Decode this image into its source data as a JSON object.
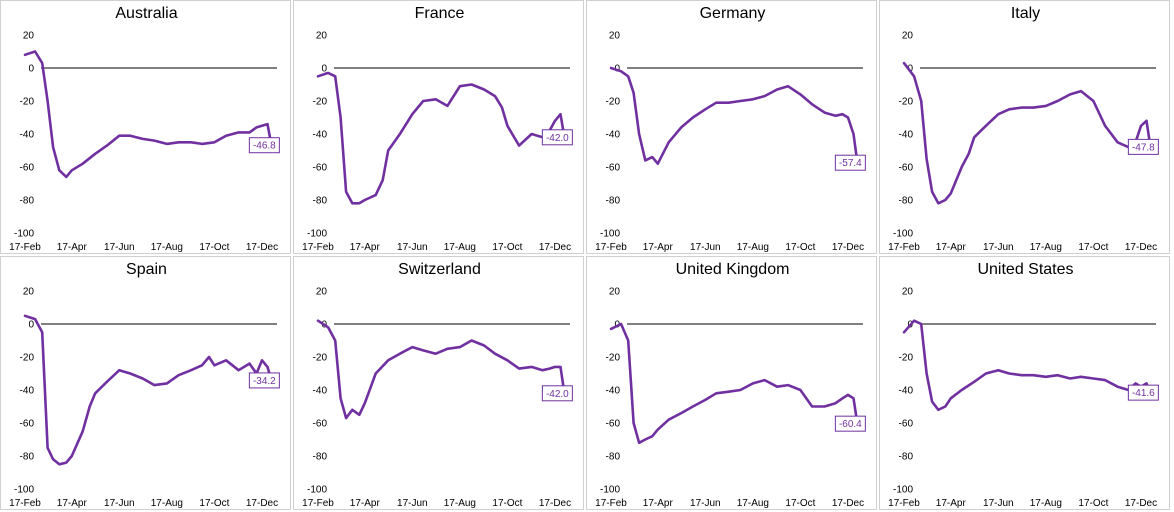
{
  "colors": {
    "series": "#7030A0",
    "zero_line": "#000000",
    "border": "#d0d0d0"
  },
  "chart_data": [
    {
      "type": "line",
      "title": "Australia",
      "x": [
        "17-Feb",
        "1-Mar",
        "10-Mar",
        "17-Mar",
        "24-Mar",
        "1-Apr",
        "10-Apr",
        "17-Apr",
        "1-May",
        "17-May",
        "1-Jun",
        "17-Jun",
        "1-Jul",
        "17-Jul",
        "1-Aug",
        "17-Aug",
        "1-Sep",
        "17-Sep",
        "1-Oct",
        "17-Oct",
        "1-Nov",
        "17-Nov",
        "1-Dec",
        "10-Dec",
        "17-Dec",
        "24-Dec",
        "29-Dec"
      ],
      "y": [
        8,
        10,
        3,
        -20,
        -48,
        -62,
        -66,
        -62,
        -58,
        -52,
        -47,
        -41,
        -41,
        -43,
        -44,
        -46,
        -45,
        -45,
        -46,
        -45,
        -41,
        -39,
        -39,
        -36,
        -35,
        -34,
        -46.8
      ],
      "end_label": "-46.8",
      "xticks": [
        "17-Feb",
        "17-Apr",
        "17-Jun",
        "17-Aug",
        "17-Oct",
        "17-Dec"
      ],
      "yticks": [
        20,
        0,
        -20,
        -40,
        -60,
        -80,
        -100
      ],
      "ylim": [
        -100,
        20
      ],
      "zero_line": true
    },
    {
      "type": "line",
      "title": "France",
      "x": [
        "17-Feb",
        "1-Mar",
        "10-Mar",
        "17-Mar",
        "24-Mar",
        "1-Apr",
        "10-Apr",
        "17-Apr",
        "1-May",
        "10-May",
        "17-May",
        "1-Jun",
        "17-Jun",
        "1-Jul",
        "17-Jul",
        "1-Aug",
        "17-Aug",
        "1-Sep",
        "17-Sep",
        "1-Oct",
        "10-Oct",
        "17-Oct",
        "1-Nov",
        "17-Nov",
        "1-Dec",
        "10-Dec",
        "17-Dec",
        "24-Dec",
        "29-Dec"
      ],
      "y": [
        -5,
        -3,
        -5,
        -30,
        -75,
        -82,
        -82,
        -80,
        -77,
        -68,
        -50,
        -40,
        -28,
        -20,
        -19,
        -23,
        -11,
        -10,
        -13,
        -17,
        -24,
        -35,
        -47,
        -40,
        -42,
        -38,
        -32,
        -28,
        -42.0
      ],
      "end_label": "-42.0",
      "xticks": [
        "17-Feb",
        "17-Apr",
        "17-Jun",
        "17-Aug",
        "17-Oct",
        "17-Dec"
      ],
      "yticks": [
        20,
        0,
        -20,
        -40,
        -60,
        -80,
        -100
      ],
      "ylim": [
        -100,
        20
      ],
      "zero_line": true
    },
    {
      "type": "line",
      "title": "Germany",
      "x": [
        "17-Feb",
        "1-Mar",
        "10-Mar",
        "17-Mar",
        "24-Mar",
        "1-Apr",
        "10-Apr",
        "17-Apr",
        "1-May",
        "17-May",
        "1-Jun",
        "17-Jun",
        "1-Jul",
        "17-Jul",
        "1-Aug",
        "17-Aug",
        "1-Sep",
        "17-Sep",
        "1-Oct",
        "17-Oct",
        "1-Nov",
        "17-Nov",
        "1-Dec",
        "10-Dec",
        "17-Dec",
        "24-Dec",
        "29-Dec"
      ],
      "y": [
        0,
        -2,
        -5,
        -15,
        -40,
        -56,
        -54,
        -58,
        -45,
        -36,
        -30,
        -25,
        -21,
        -21,
        -20,
        -19,
        -17,
        -13,
        -11,
        -16,
        -22,
        -27,
        -29,
        -28,
        -30,
        -40,
        -57.4
      ],
      "end_label": "-57.4",
      "xticks": [
        "17-Feb",
        "17-Apr",
        "17-Jun",
        "17-Aug",
        "17-Oct",
        "17-Dec"
      ],
      "yticks": [
        20,
        0,
        -20,
        -40,
        -60,
        -80,
        -100
      ],
      "ylim": [
        -100,
        20
      ],
      "zero_line": true
    },
    {
      "type": "line",
      "title": "Italy",
      "x": [
        "17-Feb",
        "1-Mar",
        "10-Mar",
        "17-Mar",
        "24-Mar",
        "1-Apr",
        "10-Apr",
        "17-Apr",
        "1-May",
        "10-May",
        "17-May",
        "1-Jun",
        "17-Jun",
        "1-Jul",
        "17-Jul",
        "1-Aug",
        "17-Aug",
        "1-Sep",
        "17-Sep",
        "1-Oct",
        "17-Oct",
        "1-Nov",
        "17-Nov",
        "1-Dec",
        "10-Dec",
        "17-Dec",
        "24-Dec",
        "29-Dec"
      ],
      "y": [
        3,
        -5,
        -20,
        -55,
        -75,
        -82,
        -80,
        -76,
        -60,
        -52,
        -42,
        -35,
        -28,
        -25,
        -24,
        -24,
        -23,
        -20,
        -16,
        -14,
        -20,
        -35,
        -45,
        -48,
        -45,
        -35,
        -32,
        -47.8
      ],
      "end_label": "-47.8",
      "xticks": [
        "17-Feb",
        "17-Apr",
        "17-Jun",
        "17-Aug",
        "17-Oct",
        "17-Dec"
      ],
      "yticks": [
        20,
        0,
        -20,
        -40,
        -60,
        -80,
        -100
      ],
      "ylim": [
        -100,
        20
      ],
      "zero_line": true
    },
    {
      "type": "line",
      "title": "Spain",
      "x": [
        "17-Feb",
        "1-Mar",
        "10-Mar",
        "17-Mar",
        "24-Mar",
        "1-Apr",
        "10-Apr",
        "17-Apr",
        "1-May",
        "10-May",
        "17-May",
        "1-Jun",
        "17-Jun",
        "1-Jul",
        "17-Jul",
        "1-Aug",
        "17-Aug",
        "1-Sep",
        "17-Sep",
        "1-Oct",
        "10-Oct",
        "17-Oct",
        "1-Nov",
        "17-Nov",
        "1-Dec",
        "10-Dec",
        "17-Dec",
        "24-Dec",
        "29-Dec"
      ],
      "y": [
        5,
        3,
        -5,
        -75,
        -82,
        -85,
        -84,
        -80,
        -65,
        -50,
        -42,
        -35,
        -28,
        -30,
        -33,
        -37,
        -36,
        -31,
        -28,
        -25,
        -20,
        -25,
        -22,
        -28,
        -24,
        -30,
        -22,
        -26,
        -34.2
      ],
      "end_label": "-34.2",
      "xticks": [
        "17-Feb",
        "17-Apr",
        "17-Jun",
        "17-Aug",
        "17-Oct",
        "17-Dec"
      ],
      "yticks": [
        20,
        0,
        -20,
        -40,
        -60,
        -80,
        -100
      ],
      "ylim": [
        -100,
        20
      ],
      "zero_line": true
    },
    {
      "type": "line",
      "title": "Switzerland",
      "x": [
        "17-Feb",
        "1-Mar",
        "10-Mar",
        "17-Mar",
        "24-Mar",
        "1-Apr",
        "10-Apr",
        "17-Apr",
        "1-May",
        "17-May",
        "1-Jun",
        "17-Jun",
        "1-Jul",
        "17-Jul",
        "1-Aug",
        "17-Aug",
        "1-Sep",
        "17-Sep",
        "1-Oct",
        "17-Oct",
        "1-Nov",
        "17-Nov",
        "1-Dec",
        "10-Dec",
        "17-Dec",
        "24-Dec",
        "29-Dec"
      ],
      "y": [
        2,
        -2,
        -10,
        -45,
        -57,
        -52,
        -55,
        -48,
        -30,
        -22,
        -18,
        -14,
        -16,
        -18,
        -15,
        -14,
        -10,
        -13,
        -18,
        -22,
        -27,
        -26,
        -28,
        -27,
        -26,
        -26,
        -42.0
      ],
      "end_label": "-42.0",
      "xticks": [
        "17-Feb",
        "17-Apr",
        "17-Jun",
        "17-Aug",
        "17-Oct",
        "17-Dec"
      ],
      "yticks": [
        20,
        0,
        -20,
        -40,
        -60,
        -80,
        -100
      ],
      "ylim": [
        -100,
        20
      ],
      "zero_line": true
    },
    {
      "type": "line",
      "title": "United Kingdom",
      "x": [
        "17-Feb",
        "1-Mar",
        "10-Mar",
        "17-Mar",
        "24-Mar",
        "1-Apr",
        "10-Apr",
        "17-Apr",
        "1-May",
        "17-May",
        "1-Jun",
        "17-Jun",
        "1-Jul",
        "17-Jul",
        "1-Aug",
        "17-Aug",
        "1-Sep",
        "17-Sep",
        "1-Oct",
        "17-Oct",
        "1-Nov",
        "17-Nov",
        "1-Dec",
        "10-Dec",
        "17-Dec",
        "24-Dec",
        "29-Dec"
      ],
      "y": [
        -3,
        0,
        -10,
        -60,
        -72,
        -70,
        -68,
        -64,
        -58,
        -54,
        -50,
        -46,
        -42,
        -41,
        -40,
        -36,
        -34,
        -38,
        -37,
        -40,
        -50,
        -50,
        -48,
        -45,
        -43,
        -45,
        -60.4
      ],
      "end_label": "-60.4",
      "xticks": [
        "17-Feb",
        "17-Apr",
        "17-Jun",
        "17-Aug",
        "17-Oct",
        "17-Dec"
      ],
      "yticks": [
        20,
        0,
        -20,
        -40,
        -60,
        -80,
        -100
      ],
      "ylim": [
        -100,
        20
      ],
      "zero_line": true
    },
    {
      "type": "line",
      "title": "United States",
      "x": [
        "17-Feb",
        "1-Mar",
        "10-Mar",
        "17-Mar",
        "24-Mar",
        "1-Apr",
        "10-Apr",
        "17-Apr",
        "1-May",
        "17-May",
        "1-Jun",
        "17-Jun",
        "1-Jul",
        "17-Jul",
        "1-Aug",
        "17-Aug",
        "1-Sep",
        "17-Sep",
        "1-Oct",
        "17-Oct",
        "1-Nov",
        "17-Nov",
        "1-Dec",
        "10-Dec",
        "17-Dec",
        "24-Dec",
        "29-Dec"
      ],
      "y": [
        -5,
        2,
        0,
        -30,
        -47,
        -52,
        -50,
        -45,
        -40,
        -35,
        -30,
        -28,
        -30,
        -31,
        -31,
        -32,
        -31,
        -33,
        -32,
        -33,
        -34,
        -38,
        -40,
        -36,
        -38,
        -36,
        -41.6
      ],
      "end_label": "-41.6",
      "xticks": [
        "17-Feb",
        "17-Apr",
        "17-Jun",
        "17-Aug",
        "17-Oct",
        "17-Dec"
      ],
      "yticks": [
        20,
        0,
        -20,
        -40,
        -60,
        -80,
        -100
      ],
      "ylim": [
        -100,
        20
      ],
      "zero_line": true
    }
  ]
}
